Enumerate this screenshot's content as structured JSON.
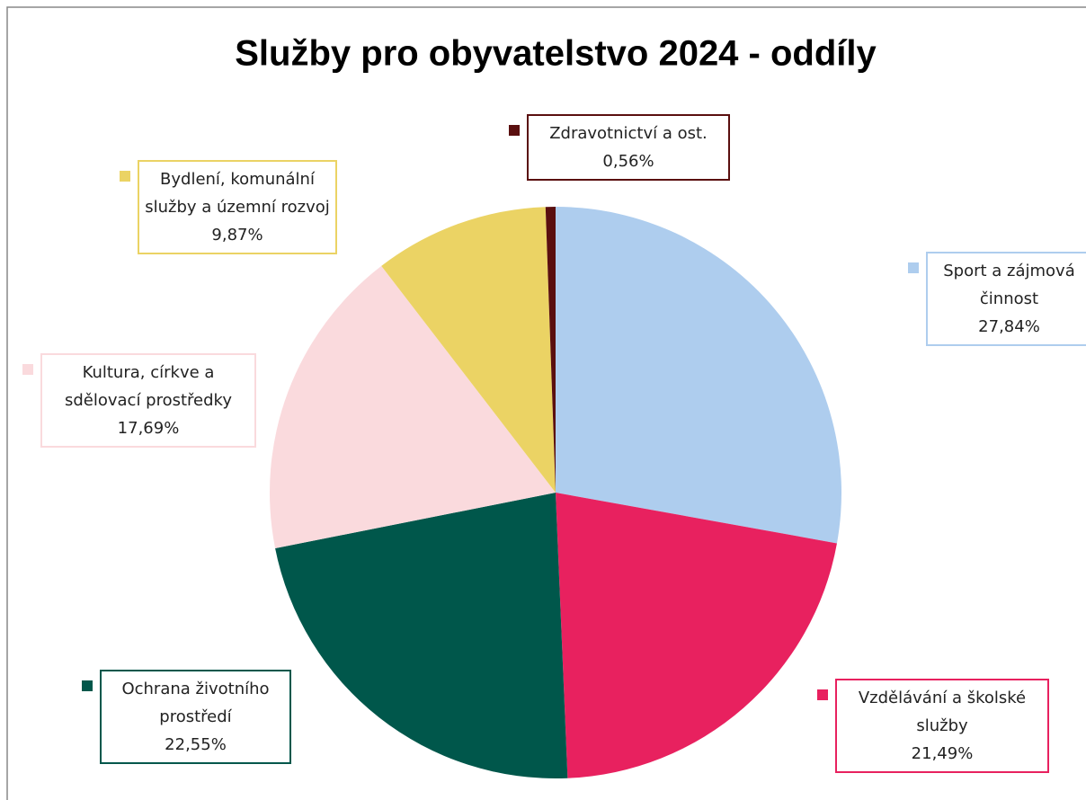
{
  "chart_data": {
    "type": "pie",
    "title": "Služby pro obyvatelstvo 2024 - oddíly",
    "categories": [
      "Sport a zájmová činnost",
      "Vzdělávání a školské služby",
      "Ochrana životního prostředí",
      "Kultura, církve a sdělovací prostředky",
      "Bydlení, komunální služby a územní rozvoj",
      "Zdravotnictví a ost."
    ],
    "values": [
      27.84,
      21.49,
      22.55,
      17.69,
      9.87,
      0.56
    ],
    "value_labels": [
      "27,84%",
      "21,49%",
      "22,55%",
      "17,69%",
      "9,87%",
      "0,56%"
    ],
    "colors": [
      "#aecdee",
      "#e8215f",
      "#00574b",
      "#fadadd",
      "#ebd364",
      "#5a0f0f"
    ]
  }
}
